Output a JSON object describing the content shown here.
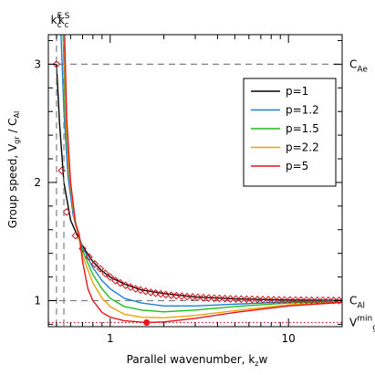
{
  "chart_data": {
    "type": "line",
    "xlabel": "Parallel wavenumber, k",
    "xlabel_sub": "z",
    "xlabel_tail": "w",
    "ylabel": "Group speed, V",
    "ylabel_sub": "gr",
    "ylabel_tail": " / C",
    "ylabel_sub2": "Al",
    "xscale": "log",
    "xlim": [
      0.45,
      20
    ],
    "ylim": [
      0.78,
      3.25
    ],
    "x_ticks": [
      {
        "value": 1,
        "label": "1"
      },
      {
        "value": 10,
        "label": "10"
      }
    ],
    "y_ticks": [
      {
        "value": 1,
        "label": "1"
      },
      {
        "value": 2,
        "label": "2"
      },
      {
        "value": 3,
        "label": "3"
      }
    ],
    "reference_lines": {
      "horizontal": [
        {
          "value": 3.0,
          "label": "C",
          "sub": "Ae",
          "style": "dashed",
          "color": "#808080"
        },
        {
          "value": 1.0,
          "label": "C",
          "sub": "Al",
          "style": "dashed",
          "color": "#808080"
        },
        {
          "value": 0.815,
          "label": "V",
          "sub": "gr",
          "sup": "min",
          "style": "dotted",
          "color": "#e8141c"
        }
      ],
      "vertical": [
        {
          "value": 0.5,
          "label": "k",
          "sub": "c",
          "sup": "E",
          "style": "dashed",
          "color": "#808080"
        },
        {
          "value": 0.55,
          "label": "k",
          "sub": "c",
          "sup": "S",
          "style": "dashed",
          "color": "#808080"
        },
        {
          "value": 1.6,
          "style": "dotted",
          "color": "#e8141c"
        }
      ]
    },
    "legend": {
      "placement": "top-right"
    },
    "series": [
      {
        "name": "p=1",
        "color": "#000000",
        "points": [
          [
            0.5,
            3.0
          ],
          [
            0.52,
            2.5
          ],
          [
            0.55,
            2.0
          ],
          [
            0.6,
            1.68
          ],
          [
            0.65,
            1.56
          ],
          [
            0.7,
            1.46
          ],
          [
            0.8,
            1.33
          ],
          [
            0.9,
            1.25
          ],
          [
            1.0,
            1.2
          ],
          [
            1.2,
            1.14
          ],
          [
            1.5,
            1.09
          ],
          [
            2,
            1.06
          ],
          [
            3,
            1.03
          ],
          [
            5,
            1.015
          ],
          [
            10,
            1.005
          ],
          [
            20,
            1.002
          ]
        ]
      },
      {
        "name": "p=1.2",
        "color": "#1f7fd6",
        "points": [
          [
            0.53,
            3.25
          ],
          [
            0.55,
            2.6
          ],
          [
            0.58,
            2.05
          ],
          [
            0.62,
            1.72
          ],
          [
            0.66,
            1.57
          ],
          [
            0.7,
            1.45
          ],
          [
            0.8,
            1.28
          ],
          [
            0.9,
            1.17
          ],
          [
            1.0,
            1.1
          ],
          [
            1.2,
            1.02
          ],
          [
            1.5,
            0.98
          ],
          [
            2,
            0.955
          ],
          [
            3,
            0.955
          ],
          [
            5,
            0.97
          ],
          [
            10,
            0.99
          ],
          [
            20,
            0.998
          ]
        ]
      },
      {
        "name": "p=1.5",
        "color": "#1fbe1f",
        "points": [
          [
            0.545,
            3.25
          ],
          [
            0.56,
            2.55
          ],
          [
            0.59,
            2.05
          ],
          [
            0.63,
            1.7
          ],
          [
            0.66,
            1.58
          ],
          [
            0.7,
            1.42
          ],
          [
            0.8,
            1.22
          ],
          [
            0.9,
            1.1
          ],
          [
            1.0,
            1.02
          ],
          [
            1.2,
            0.95
          ],
          [
            1.5,
            0.92
          ],
          [
            2,
            0.905
          ],
          [
            3,
            0.92
          ],
          [
            5,
            0.95
          ],
          [
            10,
            0.98
          ],
          [
            20,
            0.995
          ]
        ]
      },
      {
        "name": "p=2.2",
        "color": "#f2a007",
        "points": [
          [
            0.55,
            3.25
          ],
          [
            0.565,
            2.55
          ],
          [
            0.59,
            2.05
          ],
          [
            0.63,
            1.7
          ],
          [
            0.66,
            1.57
          ],
          [
            0.7,
            1.38
          ],
          [
            0.8,
            1.15
          ],
          [
            0.9,
            1.02
          ],
          [
            1.0,
            0.95
          ],
          [
            1.2,
            0.885
          ],
          [
            1.5,
            0.86
          ],
          [
            2,
            0.855
          ],
          [
            3,
            0.875
          ],
          [
            5,
            0.915
          ],
          [
            10,
            0.965
          ],
          [
            20,
            0.99
          ]
        ]
      },
      {
        "name": "p=5",
        "color": "#e8141c",
        "points": [
          [
            0.555,
            3.25
          ],
          [
            0.57,
            2.55
          ],
          [
            0.6,
            2.0
          ],
          [
            0.64,
            1.65
          ],
          [
            0.67,
            1.56
          ],
          [
            0.7,
            1.33
          ],
          [
            0.75,
            1.1
          ],
          [
            0.8,
            1.0
          ],
          [
            0.9,
            0.9
          ],
          [
            1.0,
            0.86
          ],
          [
            1.2,
            0.83
          ],
          [
            1.6,
            0.815
          ],
          [
            2,
            0.82
          ],
          [
            3,
            0.85
          ],
          [
            5,
            0.9
          ],
          [
            10,
            0.955
          ],
          [
            20,
            0.985
          ]
        ]
      }
    ],
    "markers": [
      {
        "series": "p=1",
        "shape": "diamond",
        "color": "#c8141c",
        "x": [
          0.5,
          0.535,
          0.57,
          0.64,
          0.7,
          0.76,
          0.82,
          0.88,
          0.94,
          1.0,
          1.07,
          1.14,
          1.22,
          1.3,
          1.39,
          1.48,
          1.58,
          1.69,
          1.8,
          1.92,
          2.05,
          2.2,
          2.35,
          2.52,
          2.7,
          2.9,
          3.1,
          3.33,
          3.57,
          3.83,
          4.1,
          4.4,
          4.72,
          5.06,
          5.43,
          5.82,
          6.24,
          6.7,
          7.18,
          7.7,
          8.26,
          8.86,
          9.5,
          10.2,
          10.95,
          11.75,
          12.6,
          13.5,
          14.5,
          15.6,
          16.7,
          17.9,
          19.2
        ],
        "y": [
          3.0,
          2.1,
          1.75,
          1.55,
          1.44,
          1.37,
          1.31,
          1.27,
          1.23,
          1.2,
          1.17,
          1.15,
          1.13,
          1.115,
          1.1,
          1.09,
          1.08,
          1.07,
          1.063,
          1.057,
          1.051,
          1.046,
          1.042,
          1.038,
          1.034,
          1.031,
          1.028,
          1.025,
          1.023,
          1.021,
          1.019,
          1.017,
          1.015,
          1.014,
          1.013,
          1.012,
          1.011,
          1.01,
          1.009,
          1.008,
          1.007,
          1.006,
          1.0055,
          1.005,
          1.0045,
          1.004,
          1.0035,
          1.003,
          1.0028,
          1.0025,
          1.0023,
          1.002,
          1.0018
        ]
      },
      {
        "series": "p=5",
        "shape": "dot",
        "color": "#e8141c",
        "x": [
          1.6
        ],
        "y": [
          0.815
        ]
      }
    ]
  }
}
